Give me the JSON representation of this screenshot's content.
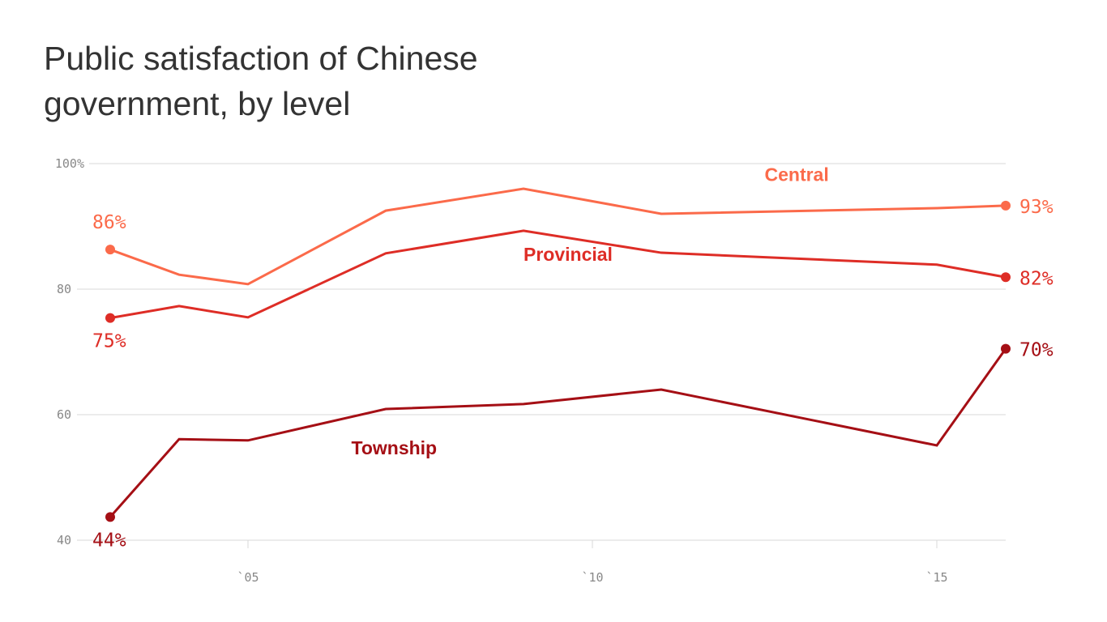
{
  "chart_data": {
    "type": "line",
    "title": "Public satisfaction of Chinese government, by level",
    "x": [
      2003,
      2004,
      2005,
      2007,
      2009,
      2011,
      2015,
      2016
    ],
    "x_ticks": [
      {
        "value": 2005,
        "label": "`05"
      },
      {
        "value": 2010,
        "label": "`10"
      },
      {
        "value": 2015,
        "label": "`15"
      }
    ],
    "y_ticks": [
      {
        "value": 40,
        "label": "40"
      },
      {
        "value": 60,
        "label": "60"
      },
      {
        "value": 80,
        "label": "80"
      },
      {
        "value": 100,
        "label": "100%"
      }
    ],
    "xlim": [
      2001.0,
      2016.3
    ],
    "ylim": [
      40,
      100
    ],
    "grid": "horizontal",
    "series": [
      {
        "name": "Central",
        "color": "#fb6a4a",
        "values": [
          86.3,
          82.3,
          80.8,
          92.5,
          96.0,
          92.0,
          92.9,
          93.3
        ],
        "start_label": "86%",
        "end_label": "93%",
        "name_at": [
          2012.5,
          97.2
        ],
        "start_label_pos": "above"
      },
      {
        "name": "Provincial",
        "color": "#de2d26",
        "values": [
          75.4,
          77.3,
          75.5,
          85.7,
          89.3,
          85.8,
          83.9,
          81.9
        ],
        "start_label": "75%",
        "end_label": "82%",
        "name_at": [
          2009.0,
          84.5
        ],
        "start_label_pos": "below"
      },
      {
        "name": "Township",
        "color": "#a50f15",
        "values": [
          43.7,
          56.1,
          55.9,
          60.9,
          61.7,
          64.0,
          55.1,
          70.5
        ],
        "start_label": "44%",
        "end_label": "70%",
        "name_at": [
          2006.5,
          53.7
        ],
        "start_label_pos": "below"
      }
    ]
  }
}
